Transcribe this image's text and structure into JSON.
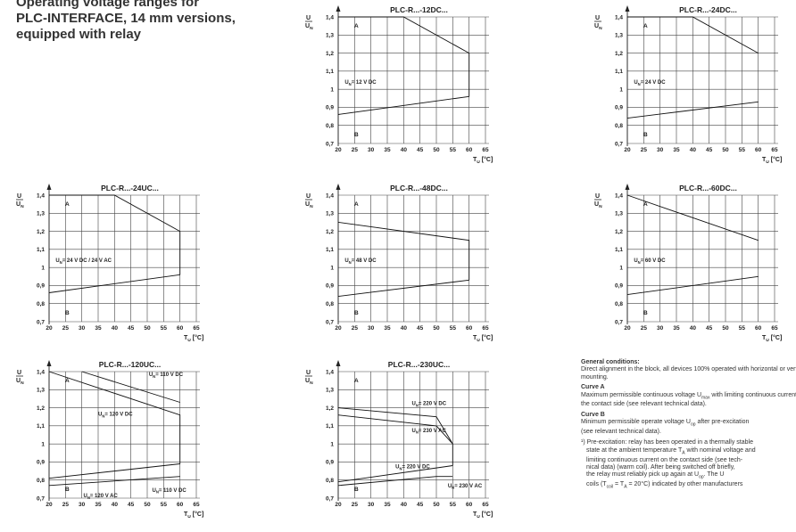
{
  "heading": {
    "lines": [
      "Operating voltage ranges for",
      "PLC-INTERFACE, 14 mm versions,",
      "equipped with relay"
    ]
  },
  "chart_data": [
    {
      "type": "line",
      "title": "PLC-R...-12DC...",
      "ylabel": "U / U_N",
      "xlabel": "T_U [°C]",
      "x_ticks": [
        20,
        25,
        30,
        35,
        40,
        45,
        50,
        55,
        60,
        65
      ],
      "y_ticks": [
        0.7,
        0.8,
        0.9,
        1,
        1.1,
        1.2,
        1.3,
        1.4
      ],
      "xlim": [
        20,
        65
      ],
      "ylim": [
        0.7,
        1.4
      ],
      "series": [
        {
          "name": "A",
          "x": [
            20,
            40,
            60,
            60
          ],
          "y": [
            1.4,
            1.4,
            1.2,
            0.96
          ]
        },
        {
          "name": "B",
          "x": [
            20,
            60
          ],
          "y": [
            0.86,
            0.96
          ]
        }
      ],
      "annotations": [
        {
          "text": "U_N= 12 V DC",
          "x": 22,
          "y": 1.04
        }
      ]
    },
    {
      "type": "line",
      "title": "PLC-R...-24DC...",
      "ylabel": "U / U_N",
      "xlabel": "T_U [°C]",
      "x_ticks": [
        20,
        25,
        30,
        35,
        40,
        45,
        50,
        55,
        60,
        65
      ],
      "y_ticks": [
        0.7,
        0.8,
        0.9,
        1,
        1.1,
        1.2,
        1.3,
        1.4
      ],
      "xlim": [
        20,
        65
      ],
      "ylim": [
        0.7,
        1.4
      ],
      "series": [
        {
          "name": "A",
          "x": [
            20,
            40,
            60
          ],
          "y": [
            1.4,
            1.4,
            1.2
          ]
        },
        {
          "name": "B",
          "x": [
            20,
            60
          ],
          "y": [
            0.84,
            0.93
          ]
        }
      ],
      "annotations": [
        {
          "text": "U_N= 24 V DC",
          "x": 22,
          "y": 1.04
        }
      ]
    },
    {
      "type": "line",
      "title": "PLC-R...-24UC...",
      "ylabel": "U / U_N",
      "xlabel": "T_U [°C]",
      "x_ticks": [
        20,
        25,
        30,
        35,
        40,
        45,
        50,
        55,
        60,
        65
      ],
      "y_ticks": [
        0.7,
        0.8,
        0.9,
        1,
        1.1,
        1.2,
        1.3,
        1.4
      ],
      "xlim": [
        20,
        65
      ],
      "ylim": [
        0.7,
        1.4
      ],
      "series": [
        {
          "name": "A",
          "x": [
            20,
            40,
            60,
            60
          ],
          "y": [
            1.4,
            1.4,
            1.2,
            0.96
          ]
        },
        {
          "name": "B",
          "x": [
            20,
            60
          ],
          "y": [
            0.86,
            0.96
          ]
        }
      ],
      "annotations": [
        {
          "text": "U_N= 24 V DC / 24 V AC",
          "x": 22,
          "y": 1.04
        }
      ]
    },
    {
      "type": "line",
      "title": "PLC-R...-48DC...",
      "ylabel": "U / U_N",
      "xlabel": "T_U [°C]",
      "x_ticks": [
        20,
        25,
        30,
        35,
        40,
        45,
        50,
        55,
        60,
        65
      ],
      "y_ticks": [
        0.7,
        0.8,
        0.9,
        1,
        1.1,
        1.2,
        1.3,
        1.4
      ],
      "xlim": [
        20,
        65
      ],
      "ylim": [
        0.7,
        1.4
      ],
      "series": [
        {
          "name": "A",
          "x": [
            20,
            60,
            60
          ],
          "y": [
            1.25,
            1.15,
            0.93
          ]
        },
        {
          "name": "B",
          "x": [
            20,
            60
          ],
          "y": [
            0.84,
            0.93
          ]
        }
      ],
      "annotations": [
        {
          "text": "U_N= 48 V DC",
          "x": 22,
          "y": 1.04
        }
      ]
    },
    {
      "type": "line",
      "title": "PLC-R...-60DC...",
      "ylabel": "U / U_N",
      "xlabel": "T_U [°C]",
      "x_ticks": [
        20,
        25,
        30,
        35,
        40,
        45,
        50,
        55,
        60,
        65
      ],
      "y_ticks": [
        0.7,
        0.8,
        0.9,
        1,
        1.1,
        1.2,
        1.3,
        1.4
      ],
      "xlim": [
        20,
        65
      ],
      "ylim": [
        0.7,
        1.4
      ],
      "series": [
        {
          "name": "A",
          "x": [
            20,
            60
          ],
          "y": [
            1.4,
            1.15
          ]
        },
        {
          "name": "B",
          "x": [
            20,
            60
          ],
          "y": [
            0.85,
            0.95
          ]
        }
      ],
      "annotations": [
        {
          "text": "U_N= 60 V DC",
          "x": 22,
          "y": 1.04
        }
      ]
    },
    {
      "type": "line",
      "title": "PLC-R...-120UC...",
      "ylabel": "U / U_N",
      "xlabel": "T_U [°C]",
      "x_ticks": [
        20,
        25,
        30,
        35,
        40,
        45,
        50,
        55,
        60,
        65
      ],
      "y_ticks": [
        0.7,
        0.8,
        0.9,
        1,
        1.1,
        1.2,
        1.3,
        1.4
      ],
      "xlim": [
        20,
        65
      ],
      "ylim": [
        0.7,
        1.4
      ],
      "series": [
        {
          "name": "A",
          "x": [
            20,
            60,
            60
          ],
          "y": [
            1.4,
            1.16,
            0.89
          ]
        },
        {
          "name": "A",
          "x": [
            30,
            60
          ],
          "y": [
            1.4,
            1.23
          ]
        },
        {
          "name": "B",
          "x": [
            20,
            60
          ],
          "y": [
            0.81,
            0.89
          ]
        },
        {
          "name": "B",
          "x": [
            20,
            60
          ],
          "y": [
            0.77,
            0.82
          ]
        }
      ],
      "annotations": [
        {
          "text": "U_N= 110 V DC",
          "x": 50.5,
          "y": 1.385
        },
        {
          "text": "U_N= 120 V DC",
          "x": 35,
          "y": 1.165
        },
        {
          "text": "U_N= 120 V AC",
          "x": 30.5,
          "y": 0.715
        },
        {
          "text": "U_N= 110 V DC",
          "x": 51.5,
          "y": 0.745
        }
      ]
    },
    {
      "type": "line",
      "title": "PLC-R...-230UC...",
      "ylabel": "U / U_N",
      "xlabel": "T_U [°C]",
      "x_ticks": [
        20,
        25,
        30,
        35,
        40,
        45,
        50,
        55,
        60,
        65
      ],
      "y_ticks": [
        0.7,
        0.8,
        0.9,
        1,
        1.1,
        1.2,
        1.3,
        1.4
      ],
      "xlim": [
        20,
        65
      ],
      "ylim": [
        0.7,
        1.4
      ],
      "series": [
        {
          "name": "A",
          "x": [
            20,
            50,
            55,
            55
          ],
          "y": [
            1.2,
            1.15,
            1.0,
            0.88
          ]
        },
        {
          "name": "A",
          "x": [
            20,
            50,
            55
          ],
          "y": [
            1.16,
            1.1,
            1.0
          ]
        },
        {
          "name": "B",
          "x": [
            20,
            55
          ],
          "y": [
            0.79,
            0.88
          ]
        },
        {
          "name": "B",
          "x": [
            20,
            50,
            55
          ],
          "y": [
            0.77,
            0.82,
            0.82
          ]
        }
      ],
      "annotations": [
        {
          "text": "U_N= 220 V DC",
          "x": 42.5,
          "y": 1.225
        },
        {
          "text": "U_N= 230 V AC",
          "x": 42.5,
          "y": 1.075
        },
        {
          "text": "U_N= 220 V DC",
          "x": 37.5,
          "y": 0.875
        },
        {
          "text": "U_N= 230 V AC",
          "x": 53.5,
          "y": 0.77
        }
      ]
    }
  ],
  "notes": {
    "general_title": "General conditions:",
    "general_text": "Direct alignment in the block, all devices 100% operated with horizontal or vertical mounting.",
    "curve_a_title": "Curve A",
    "curve_a_text_1": "Maximum permissible continuous voltage U",
    "curve_a_sub": "max",
    "curve_a_text_2": " with limiting continuous current on the contact side (see relevant technical data).",
    "curve_b_title": "Curve B",
    "curve_b_text_1": "Minimum permissible operate voltage U",
    "curve_b_sub": "op",
    "curve_b_text_2": " after pre-excitation",
    "curve_b_text_3": "(see relevant technical data).",
    "footnote_line_1": "¹) Pre-excitation: relay has been operated in a thermally stable",
    "footnote_line_2": "state at the ambient temperature T",
    "footnote_line_2_sub": "A",
    "footnote_line_2b": " with nominal voltage and",
    "footnote_line_3": "limiting continuous current on the contact side (see tech-",
    "footnote_line_4": "nical data) (warm coil). After being switched off briefly,",
    "footnote_line_5": "the relay must reliably pick up again at U",
    "footnote_line_5_sub": "op",
    "footnote_line_5b": ". The U",
    "footnote_line_6": "coils (T",
    "footnote_line_6_sub": "coil",
    "footnote_line_6b": " = T",
    "footnote_line_6_sub2": "A",
    "footnote_line_6c": " = 20°C) indicated by other manufacturers"
  }
}
